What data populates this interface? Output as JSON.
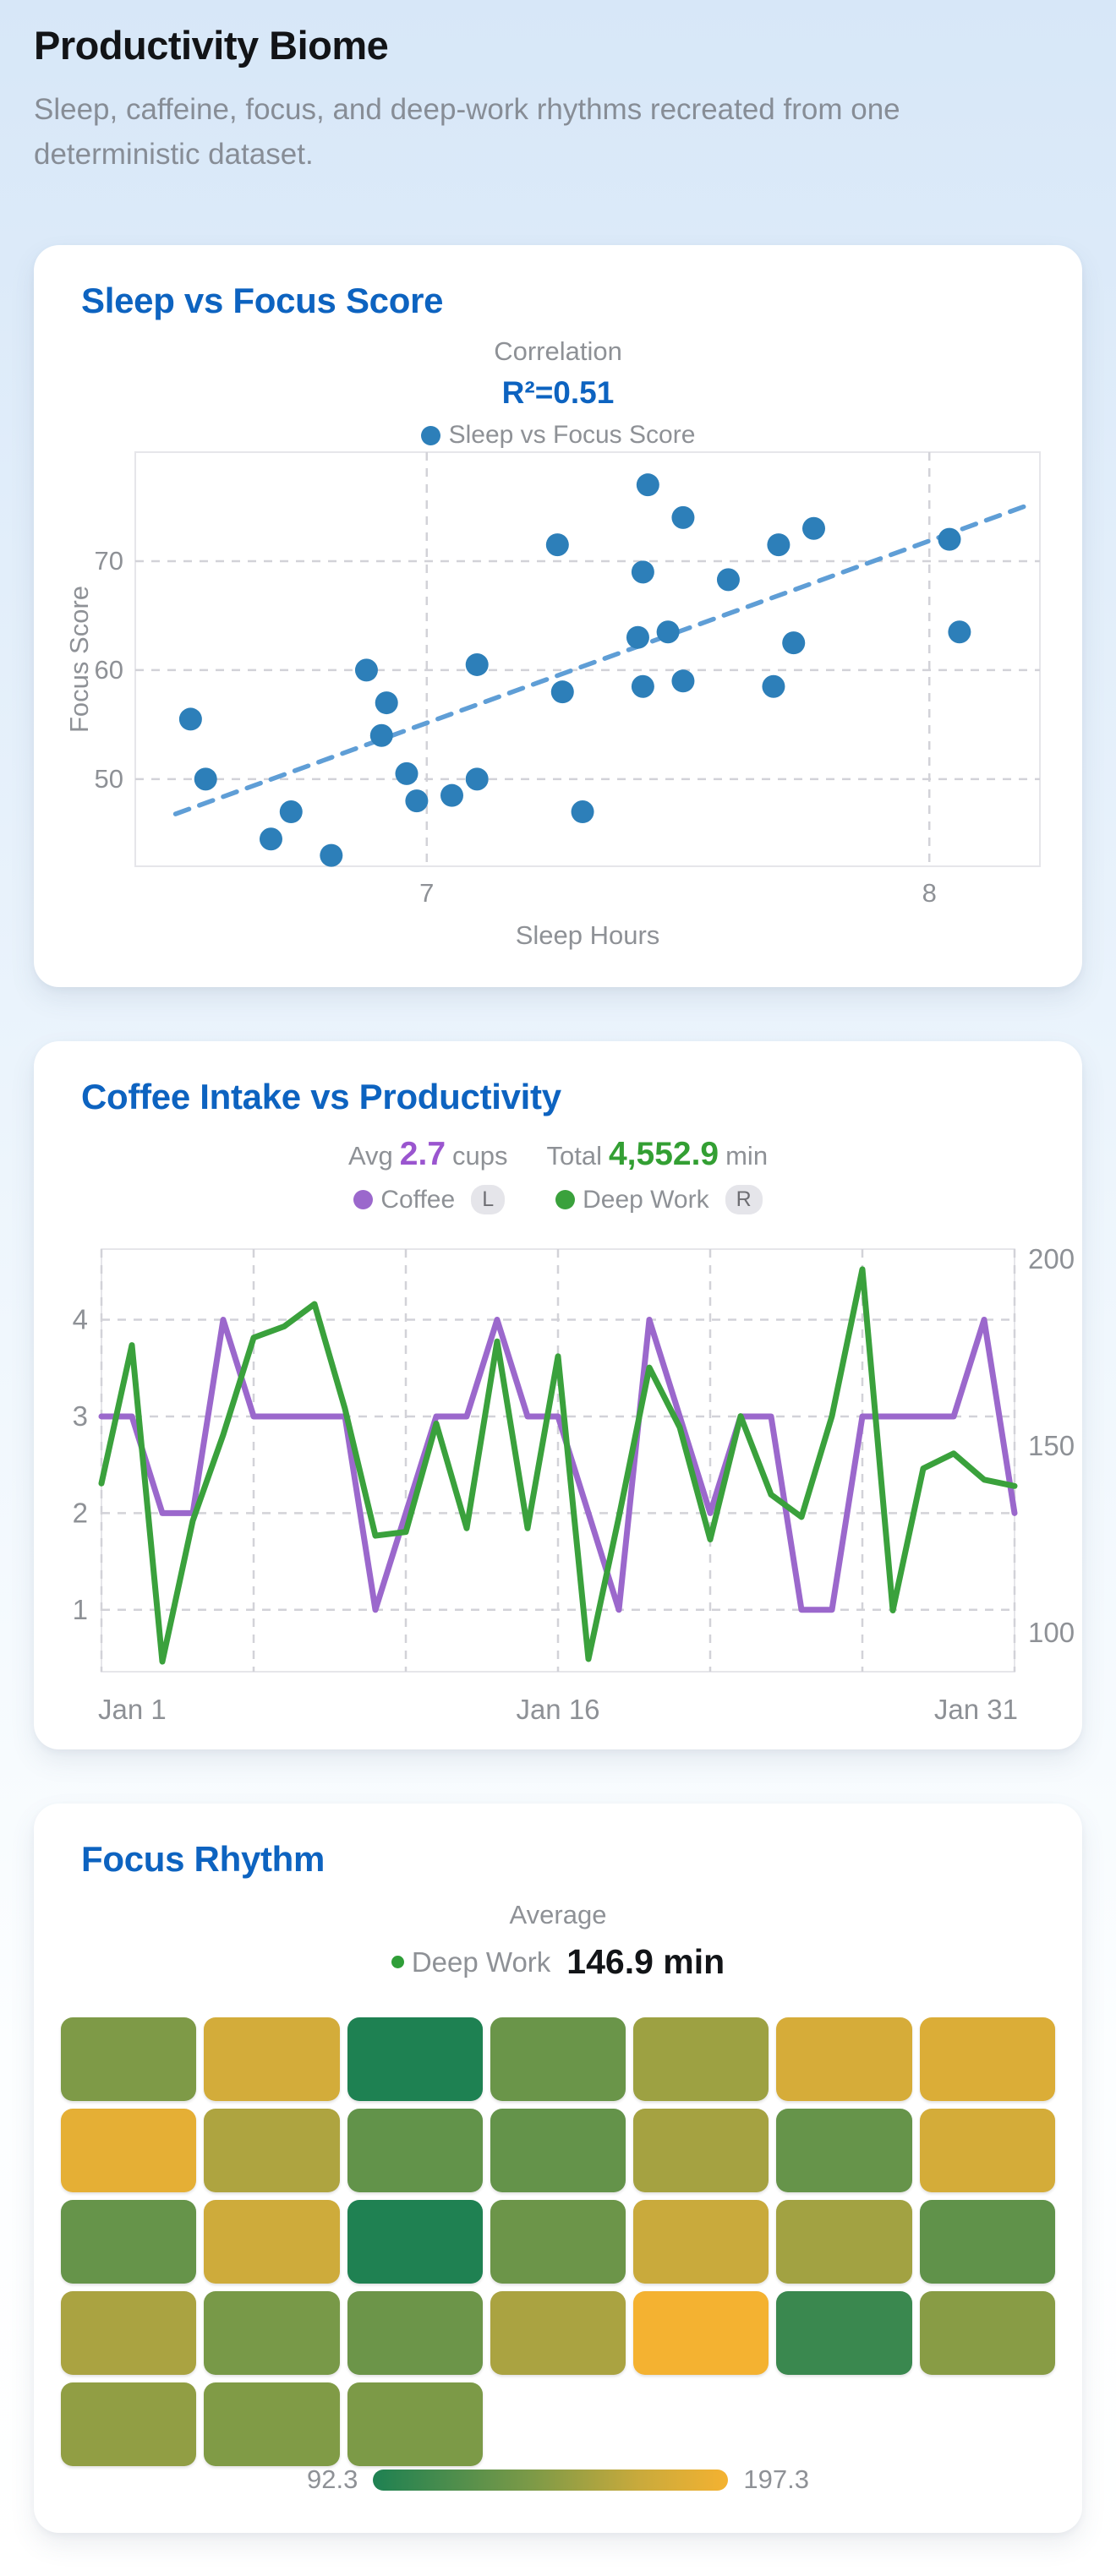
{
  "header": {
    "title": "Productivity Biome",
    "subtitle": "Sleep, caffeine, focus, and deep-work rhythms recreated from one deterministic dataset."
  },
  "scatter_card": {
    "title": "Sleep vs Focus Score",
    "stat_label": "Correlation",
    "stat_value": "R²=0.51",
    "legend_label": "Sleep vs Focus Score"
  },
  "lines_card": {
    "title": "Coffee Intake vs Productivity",
    "stats": [
      {
        "label": "Avg",
        "value": "2.7",
        "unit": "cups",
        "color": "#9a55cf"
      },
      {
        "label": "Total",
        "value": "4,552.9",
        "unit": "min",
        "color": "#339f33"
      }
    ],
    "legend": [
      {
        "label": "Coffee",
        "axis": "L",
        "color": "#9b68cc"
      },
      {
        "label": "Deep Work",
        "axis": "R",
        "color": "#3aa13c"
      }
    ]
  },
  "heatmap_card": {
    "title": "Focus Rhythm",
    "stat_label": "Average",
    "legend_series": "Deep Work",
    "legend_value": "146.9 min",
    "legend_dot_color": "#2f9e38",
    "scale_min": "92.3",
    "scale_max": "197.3"
  },
  "colors": {
    "accent_blue": "#0d63c0",
    "gray_text": "#8e9196",
    "dot_blue": "#2d7fb9",
    "trend_blue": "#5f9ed6",
    "purple": "#9b68cc",
    "green": "#3aa13c",
    "grid_gray": "#d2d2d8",
    "border_gray": "#e6e6ea"
  },
  "chart_data": [
    {
      "type": "scatter",
      "title": "Sleep vs Focus Score",
      "xlabel": "Sleep Hours",
      "ylabel": "Focus Score",
      "xlim": [
        6.42,
        8.22
      ],
      "ylim": [
        42,
        80
      ],
      "xticks": [
        7,
        8
      ],
      "yticks": [
        50,
        60,
        70
      ],
      "r_squared": 0.51,
      "trend_line": [
        [
          6.5,
          46.8
        ],
        [
          8.2,
          75.2
        ]
      ],
      "points": [
        [
          6.53,
          55.5
        ],
        [
          6.56,
          50
        ],
        [
          6.69,
          44.5
        ],
        [
          6.73,
          47
        ],
        [
          6.81,
          43
        ],
        [
          6.88,
          60
        ],
        [
          6.91,
          54
        ],
        [
          6.92,
          57
        ],
        [
          6.96,
          50.5
        ],
        [
          6.98,
          48
        ],
        [
          7.05,
          48.5
        ],
        [
          7.1,
          50
        ],
        [
          7.1,
          60.5
        ],
        [
          7.26,
          71.5
        ],
        [
          7.27,
          58
        ],
        [
          7.31,
          47
        ],
        [
          7.42,
          63
        ],
        [
          7.43,
          58.5
        ],
        [
          7.43,
          69
        ],
        [
          7.44,
          77
        ],
        [
          7.48,
          63.5
        ],
        [
          7.51,
          59
        ],
        [
          7.51,
          74
        ],
        [
          7.6,
          68.3
        ],
        [
          7.69,
          58.5
        ],
        [
          7.7,
          71.5
        ],
        [
          7.73,
          62.5
        ],
        [
          7.77,
          73
        ],
        [
          8.04,
          72
        ],
        [
          8.06,
          63.5
        ]
      ]
    },
    {
      "type": "line",
      "title": "Coffee Intake vs Productivity",
      "x_labels": [
        "Jan 1",
        "Jan 16",
        "Jan 31"
      ],
      "days": 31,
      "left_axis": {
        "ticks": [
          1,
          2,
          3,
          4
        ],
        "range": [
          0.36,
          4.73
        ]
      },
      "right_axis": {
        "ticks": [
          100,
          150,
          200
        ],
        "range": [
          89.6,
          202.7
        ]
      },
      "grid_every_days": 5,
      "series": [
        {
          "name": "Coffee",
          "axis": "left",
          "color": "#9b68cc",
          "values": [
            3,
            3,
            2,
            2,
            4,
            3,
            3,
            3,
            3,
            1,
            2,
            3,
            3,
            4,
            3,
            3,
            2,
            1,
            4,
            3,
            2,
            3,
            3,
            1,
            1,
            3,
            3,
            3,
            3,
            4,
            2
          ]
        },
        {
          "name": "Deep Work",
          "axis": "right",
          "color": "#3aa13c",
          "values": [
            140,
            177,
            92.3,
            130,
            153,
            179,
            182,
            188,
            160,
            126,
            127,
            156,
            128,
            178,
            128,
            174,
            93,
            131,
            171,
            155,
            125,
            158,
            137,
            131,
            158,
            197.3,
            106,
            144,
            148,
            141,
            139.3
          ]
        }
      ],
      "avg_coffee": 2.7,
      "total_deep_work": 4552.9
    },
    {
      "type": "heatmap",
      "title": "Focus Rhythm",
      "metric": "Deep Work (min)",
      "average": 146.9,
      "min": 92.3,
      "max": 197.3,
      "row_sizes": [
        7,
        7,
        7,
        7,
        3
      ],
      "values": [
        140,
        177,
        92.3,
        130,
        153,
        179,
        182,
        188,
        160,
        126,
        127,
        156,
        128,
        178,
        128,
        174,
        93,
        131,
        171,
        155,
        125,
        158,
        137,
        131,
        158,
        197.3,
        106,
        144,
        148,
        141,
        139.3
      ],
      "gradient_stops": [
        [
          0,
          "#1e8152"
        ],
        [
          0.45,
          "#7d9a47"
        ],
        [
          0.75,
          "#c9aa3c"
        ],
        [
          1,
          "#f4b231"
        ]
      ]
    }
  ]
}
